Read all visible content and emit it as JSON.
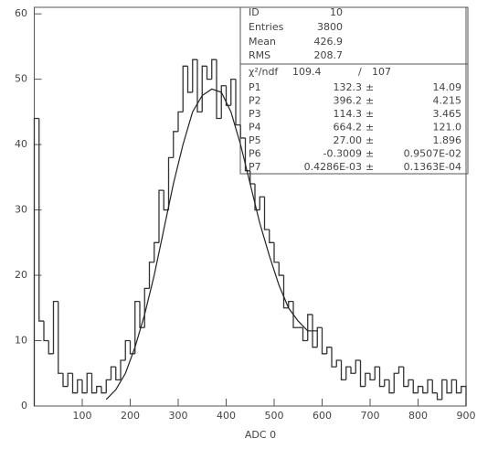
{
  "chart_data": {
    "type": "histogram",
    "x_label": "ADC 0",
    "xlim": [
      0,
      900
    ],
    "ylim": [
      0,
      61
    ],
    "xticks": [
      100,
      200,
      300,
      400,
      500,
      600,
      700,
      800,
      900
    ],
    "yticks": [
      0,
      10,
      20,
      30,
      40,
      50,
      60
    ],
    "color": "#333333",
    "bins": [
      0,
      10,
      20,
      30,
      40,
      50,
      60,
      70,
      80,
      90,
      100,
      110,
      120,
      130,
      140,
      150,
      160,
      170,
      180,
      190,
      200,
      210,
      220,
      230,
      240,
      250,
      260,
      270,
      280,
      290,
      300,
      310,
      320,
      330,
      340,
      350,
      360,
      370,
      380,
      390,
      400,
      410,
      420,
      430,
      440,
      450,
      460,
      470,
      480,
      490,
      500,
      510,
      520,
      530,
      540,
      550,
      560,
      570,
      580,
      590,
      600,
      610,
      620,
      630,
      640,
      650,
      660,
      670,
      680,
      690,
      700,
      710,
      720,
      730,
      740,
      750,
      760,
      770,
      780,
      790,
      800,
      810,
      820,
      830,
      840,
      850,
      860,
      870,
      880,
      890,
      900
    ],
    "values": [
      44,
      13,
      10,
      8,
      16,
      5,
      3,
      5,
      2,
      4,
      2,
      5,
      2,
      3,
      2,
      4,
      6,
      4,
      7,
      10,
      8,
      16,
      12,
      18,
      22,
      25,
      33,
      30,
      38,
      42,
      45,
      52,
      48,
      53,
      45,
      52,
      50,
      53,
      44,
      49,
      46,
      50,
      43,
      41,
      36,
      34,
      30,
      32,
      27,
      25,
      22,
      20,
      15,
      16,
      12,
      12,
      10,
      14,
      9,
      12,
      8,
      9,
      6,
      7,
      4,
      6,
      5,
      7,
      3,
      5,
      4,
      6,
      3,
      4,
      2,
      5,
      6,
      3,
      4,
      2,
      3,
      2,
      4,
      2,
      1,
      4,
      2,
      4,
      2,
      3
    ],
    "fit": {
      "x": [
        150,
        170,
        190,
        210,
        230,
        250,
        270,
        290,
        310,
        330,
        350,
        370,
        390,
        410,
        430,
        450,
        470,
        490,
        510,
        530,
        550,
        570,
        590
      ],
      "y": [
        1,
        2.5,
        5,
        9,
        14,
        20,
        27,
        34,
        40,
        45,
        47.5,
        48.5,
        48,
        45,
        40,
        34,
        28,
        23,
        18.5,
        15,
        13,
        11.5,
        11.5
      ]
    },
    "stats": [
      {
        "label": "ID",
        "value": 10
      },
      {
        "label": "Entries",
        "value": 3800
      },
      {
        "label": "Mean",
        "value": 426.9
      },
      {
        "label": "RMS",
        "value": 208.7
      }
    ],
    "chi2_label": "χ²/ndf",
    "chi2": 109.4,
    "slash": "/",
    "ndf": 107,
    "pm": "±",
    "params": [
      {
        "name": "P1",
        "value": "132.3",
        "error": "14.09"
      },
      {
        "name": "P2",
        "value": "396.2",
        "error": "4.215"
      },
      {
        "name": "P3",
        "value": "114.3",
        "error": "3.465"
      },
      {
        "name": "P4",
        "value": "664.2",
        "error": "121.0"
      },
      {
        "name": "P5",
        "value": "27.00",
        "error": "1.896"
      },
      {
        "name": "P6",
        "value": "-0.3009",
        "error": "0.9507E-02"
      },
      {
        "name": "P7",
        "value": "0.4286E-03",
        "error": "0.1363E-04"
      }
    ]
  }
}
